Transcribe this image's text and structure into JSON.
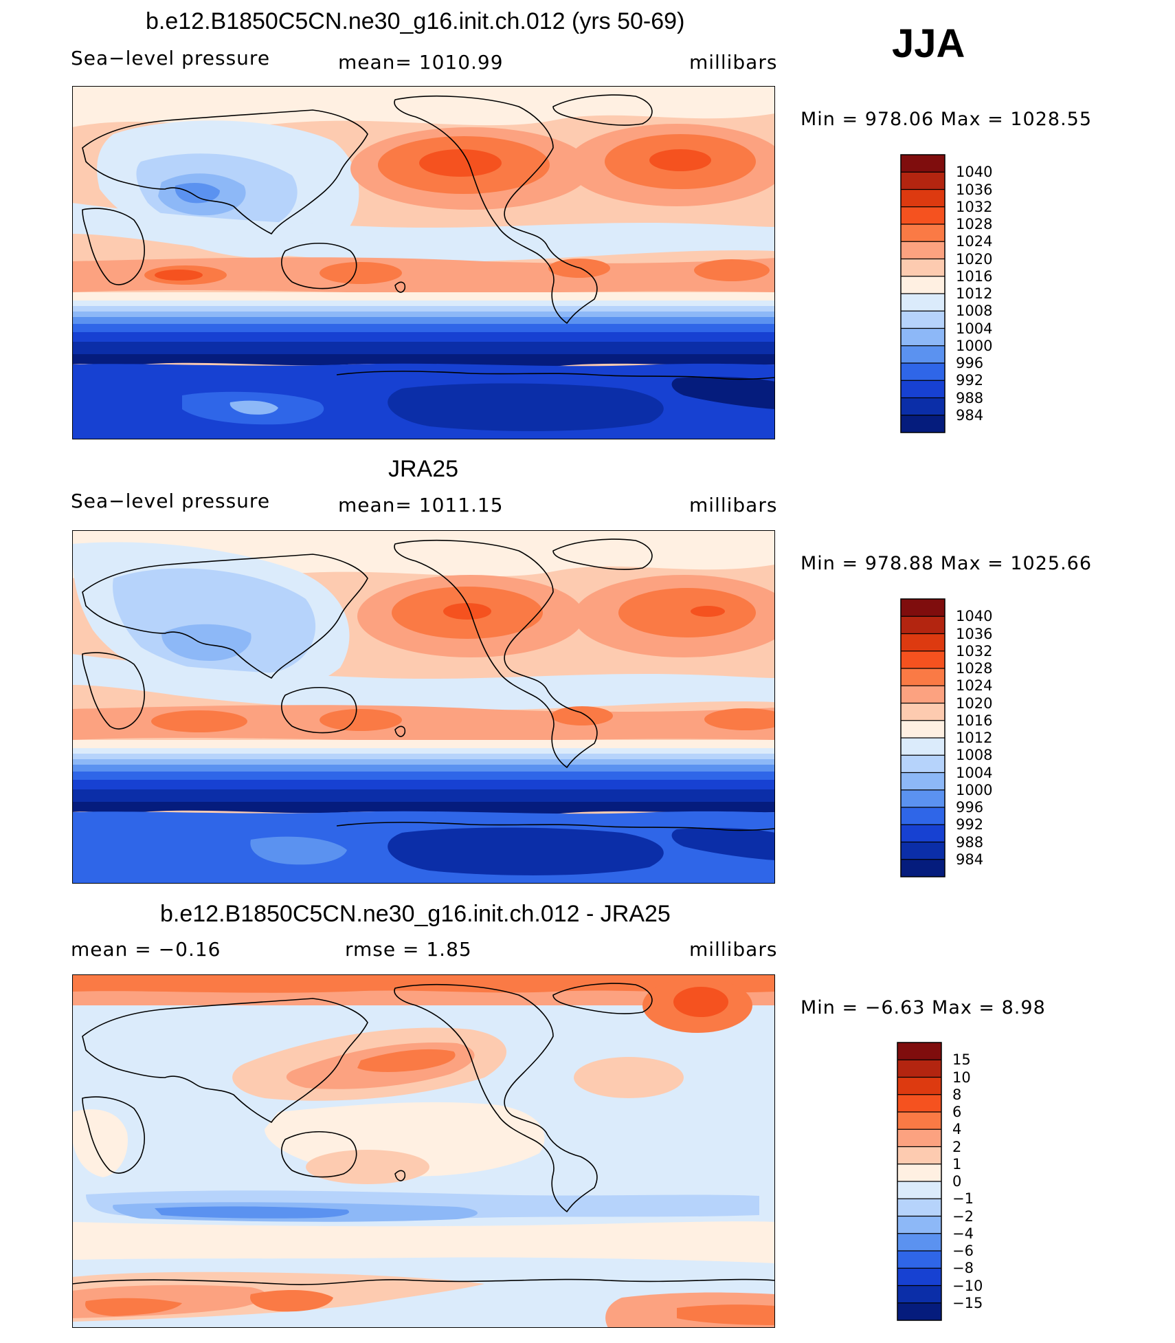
{
  "season": "JJA",
  "panels": [
    {
      "id": "model",
      "title": "b.e12.B1850C5CN.ne30_g16.init.ch.012 (yrs 50-69)",
      "left_label": "Sea−level pressure",
      "center_label": "mean=  1010.99",
      "right_label": "millibars",
      "minmax": "Min  =  978.06  Max  =  1028.55",
      "colorbar_labels": [
        "1040",
        "1036",
        "1032",
        "1028",
        "1024",
        "1020",
        "1016",
        "1012",
        "1008",
        "1004",
        "1000",
        "996",
        "992",
        "988",
        "984"
      ],
      "colors": [
        "#7f0d0d",
        "#b32510",
        "#dd3a10",
        "#f5521f",
        "#fa7a45",
        "#fca280",
        "#fdcbb0",
        "#fff0e2",
        "#dbebfb",
        "#b6d3fb",
        "#8db8f7",
        "#5b92f0",
        "#2f66e8",
        "#1741d2",
        "#0b2ea8",
        "#051c7d"
      ]
    },
    {
      "id": "obs",
      "title": "JRA25",
      "left_label": "Sea−level pressure",
      "center_label": "mean=  1011.15",
      "right_label": "millibars",
      "minmax": "Min  =  978.88  Max  =  1025.66",
      "colorbar_labels": [
        "1040",
        "1036",
        "1032",
        "1028",
        "1024",
        "1020",
        "1016",
        "1012",
        "1008",
        "1004",
        "1000",
        "996",
        "992",
        "988",
        "984"
      ],
      "colors": [
        "#7f0d0d",
        "#b32510",
        "#dd3a10",
        "#f5521f",
        "#fa7a45",
        "#fca280",
        "#fdcbb0",
        "#fff0e2",
        "#dbebfb",
        "#b6d3fb",
        "#8db8f7",
        "#5b92f0",
        "#2f66e8",
        "#1741d2",
        "#0b2ea8",
        "#051c7d"
      ]
    },
    {
      "id": "diff",
      "title": "b.e12.B1850C5CN.ne30_g16.init.ch.012 - JRA25",
      "left_label": "mean  =    −0.16",
      "center_label": "rmse  =     1.85",
      "right_label": "millibars",
      "minmax": "Min  =    −6.63  Max  =     8.98",
      "colorbar_labels": [
        "15",
        "10",
        "8",
        "6",
        "4",
        "2",
        "1",
        "0",
        "−1",
        "−2",
        "−4",
        "−6",
        "−8",
        "−10",
        "−15"
      ],
      "colors": [
        "#7f0d0d",
        "#b32510",
        "#dd3a10",
        "#f5521f",
        "#fa7a45",
        "#fca280",
        "#fdcbb0",
        "#fff0e2",
        "#dbebfb",
        "#b6d3fb",
        "#8db8f7",
        "#5b92f0",
        "#2f66e8",
        "#1741d2",
        "#0b2ea8",
        "#051c7d"
      ]
    }
  ]
}
